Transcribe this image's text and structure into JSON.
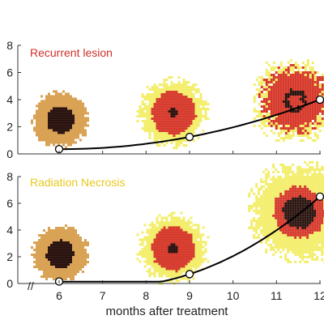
{
  "colors": {
    "recurrent": "#d0302a",
    "necrosis": "#e9c81f",
    "yellow": "#f3ee6a",
    "orange": "#d9a152",
    "red": "#d63a2c",
    "core": "#2b1410",
    "curve": "#000000"
  },
  "chart_data": [
    {
      "type": "line",
      "annotation": "Recurrent lesion",
      "xlim": [
        5,
        12
      ],
      "ylim": [
        0,
        8
      ],
      "y_ticks": [
        "0",
        "2",
        "4",
        "6",
        "8"
      ],
      "points": [
        {
          "x": 6,
          "y": 0.35
        },
        {
          "x": 9,
          "y": 1.25
        },
        {
          "x": 12,
          "y": 4.0
        }
      ],
      "lesions": [
        {
          "x": 6,
          "y": 2.6,
          "kind": "orange"
        },
        {
          "x": 8.6,
          "y": 3.1,
          "kind": "yellow-red"
        },
        {
          "x": 11.4,
          "y": 4.0,
          "kind": "red-dominant"
        }
      ]
    },
    {
      "type": "line",
      "annotation": "Radiation Necrosis",
      "xlim": [
        5,
        12
      ],
      "ylim": [
        0,
        8
      ],
      "y_ticks": [
        "0",
        "2",
        "4",
        "6",
        "8"
      ],
      "points": [
        {
          "x": 6,
          "y": 0.15
        },
        {
          "x": 9,
          "y": 0.7
        },
        {
          "x": 12,
          "y": 6.5
        }
      ],
      "lesions": [
        {
          "x": 6,
          "y": 2.3,
          "kind": "orange"
        },
        {
          "x": 8.6,
          "y": 2.7,
          "kind": "yellow-red"
        },
        {
          "x": 11.5,
          "y": 5.4,
          "kind": "yellow-dominant"
        }
      ]
    }
  ],
  "x_axis": {
    "label": "months after treatment",
    "ticks": [
      "6",
      "7",
      "8",
      "9",
      "10",
      "11",
      "12"
    ],
    "tick_values": [
      6,
      7,
      8,
      9,
      10,
      11,
      12
    ],
    "break_mark": "//"
  }
}
